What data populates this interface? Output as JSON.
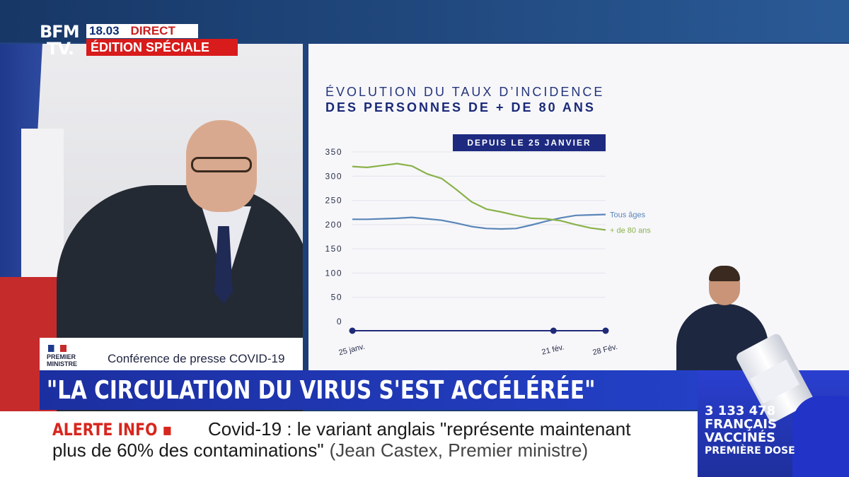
{
  "header": {
    "logo_line1": "BFM",
    "logo_line2": "TV.",
    "time": "18.03",
    "direct": "DIRECT",
    "edition": "ÉDITION SPÉCIALE"
  },
  "lectern": {
    "pm_line1": "PREMIER",
    "pm_line2": "MINISTRE",
    "conference": "Conférence de presse COVID-19"
  },
  "chart_data": {
    "type": "line",
    "title_line1": "ÉVOLUTION DU TAUX D’INCIDENCE",
    "title_line2": "DES PERSONNES DE + DE 80 ANS",
    "badge": "DEPUIS LE 25 JANVIER",
    "ylim": [
      0,
      350
    ],
    "yticks": [
      0,
      50,
      100,
      150,
      200,
      250,
      300,
      350
    ],
    "x": [
      0,
      2,
      4,
      6,
      8,
      10,
      12,
      14,
      16,
      18,
      20,
      22,
      24,
      26,
      28,
      30,
      32,
      34
    ],
    "xticks": [
      {
        "x": 0,
        "label": "25 janv."
      },
      {
        "x": 27,
        "label": "21 fév."
      },
      {
        "x": 34,
        "label": "28 Fév."
      }
    ],
    "series": [
      {
        "name": "Tous âges",
        "color": "#5a86b8",
        "values": [
          211,
          211,
          212,
          213,
          215,
          212,
          209,
          203,
          196,
          192,
          191,
          192,
          199,
          207,
          214,
          219,
          220,
          221
        ]
      },
      {
        "name": "+ de 80 ans",
        "color": "#8ab24a",
        "values": [
          320,
          318,
          322,
          326,
          321,
          305,
          295,
          272,
          247,
          232,
          226,
          219,
          213,
          212,
          208,
          200,
          193,
          189
        ]
      }
    ],
    "colors": {
      "axis": "#1f2a78",
      "grid": "#e2e4ea",
      "badge_bg": "#1d2a80",
      "badge_text": "#ffffff"
    }
  },
  "headline": "\"LA CIRCULATION DU VIRUS S'EST ACCÉLÉRÉE\"",
  "ticker": {
    "alert": "ALERTE INFO ▪",
    "line1": "Covid-19 : le variant anglais \"représente maintenant",
    "line2": "plus de 60% des contaminations\"",
    "source": "(Jean Castex, Premier ministre)"
  },
  "vaccine": {
    "count": "3 133 478",
    "line2": "FRANÇAIS",
    "line3": "VACCINÉS",
    "line4": "PREMIÈRE DOSE"
  }
}
